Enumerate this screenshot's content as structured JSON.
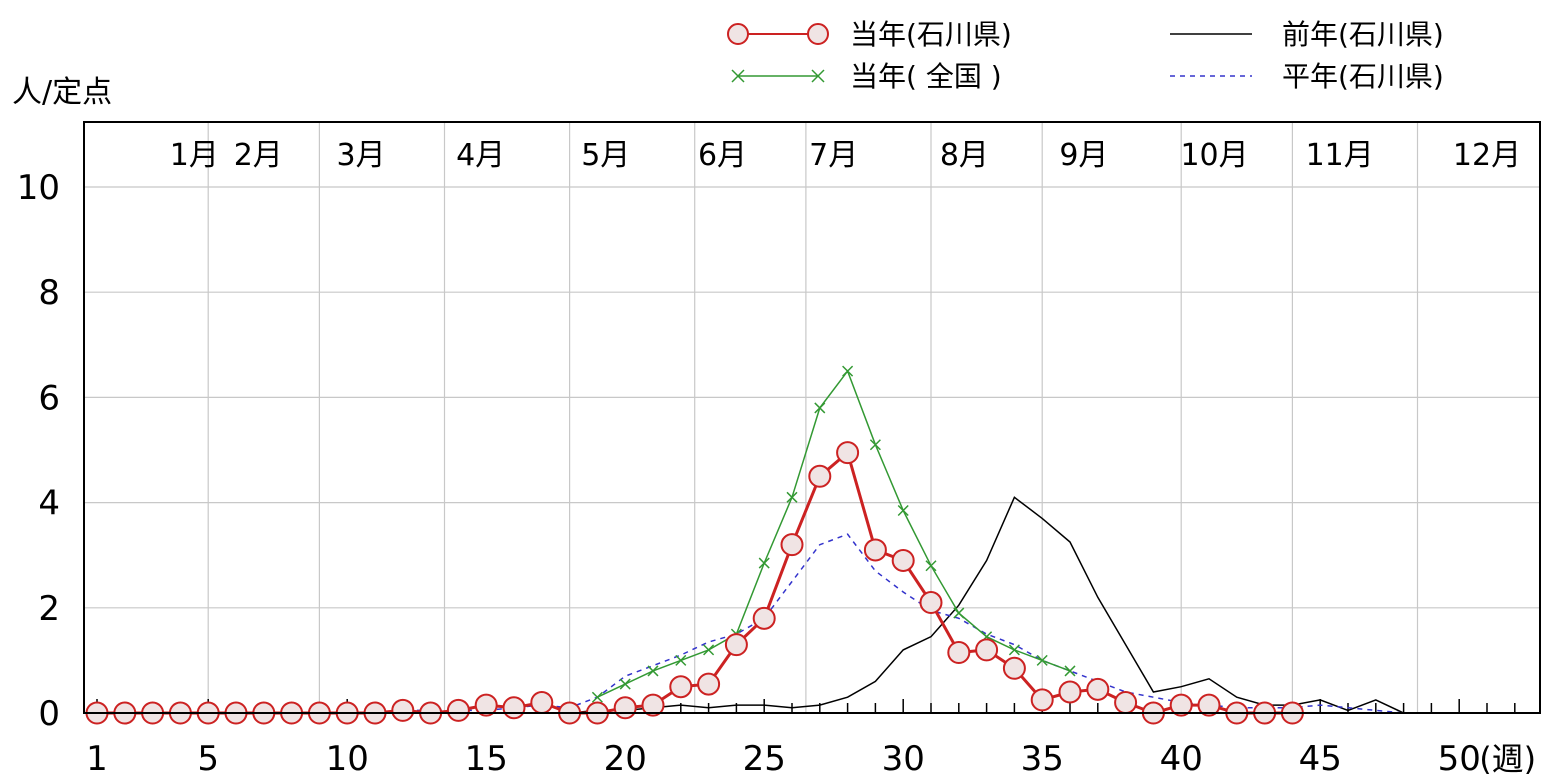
{
  "chart_data": {
    "type": "line",
    "ylabel": "人/定点",
    "xunit": "(週)",
    "ylim": [
      0,
      10
    ],
    "xlim": [
      1,
      52
    ],
    "yticks": [
      "0",
      "2",
      "4",
      "6",
      "8",
      "10"
    ],
    "xticks": [
      {
        "x": 1,
        "label": "1"
      },
      {
        "x": 5,
        "label": "5"
      },
      {
        "x": 10,
        "label": "10"
      },
      {
        "x": 15,
        "label": "15"
      },
      {
        "x": 20,
        "label": "20"
      },
      {
        "x": 25,
        "label": "25"
      },
      {
        "x": 30,
        "label": "30"
      },
      {
        "x": 35,
        "label": "35"
      },
      {
        "x": 40,
        "label": "40"
      },
      {
        "x": 45,
        "label": "45"
      },
      {
        "x": 50,
        "label": "50"
      }
    ],
    "months": [
      {
        "label": "1月",
        "x": 4.5
      },
      {
        "label": "2月",
        "x": 6.8
      },
      {
        "label": "3月",
        "x": 10.5
      },
      {
        "label": "4月",
        "x": 14.8
      },
      {
        "label": "5月",
        "x": 19.3
      },
      {
        "label": "6月",
        "x": 23.5
      },
      {
        "label": "7月",
        "x": 27.5
      },
      {
        "label": "8月",
        "x": 32.2
      },
      {
        "label": "9月",
        "x": 36.5
      },
      {
        "label": "10月",
        "x": 41.2
      },
      {
        "label": "11月",
        "x": 45.7
      },
      {
        "label": "12月",
        "x": 51
      }
    ],
    "month_boundaries": [
      5,
      9,
      13.5,
      18,
      22.5,
      26.5,
      31,
      35,
      40,
      44,
      48.5
    ],
    "legend": {
      "current_pref": "当年(石川県)",
      "current_national": "当年( 全国 )",
      "previous_pref": "前年(石川県)",
      "normal_pref": "平年(石川県)"
    },
    "series": [
      {
        "name": "当年(石川県)",
        "color": "#cc2222",
        "x": [
          1,
          2,
          3,
          4,
          5,
          6,
          7,
          8,
          9,
          10,
          11,
          12,
          13,
          14,
          15,
          16,
          17,
          18,
          19,
          20,
          21,
          22,
          23,
          24,
          25,
          26,
          27,
          28,
          29,
          30,
          31,
          32,
          33,
          34,
          35,
          36,
          37,
          38,
          39,
          40,
          41,
          42,
          43,
          44
        ],
        "values": [
          0,
          0,
          0,
          0,
          0,
          0,
          0,
          0,
          0,
          0,
          0,
          0.05,
          0,
          0.05,
          0.15,
          0.1,
          0.2,
          0,
          0,
          0.1,
          0.15,
          0.5,
          0.55,
          1.3,
          1.8,
          3.2,
          4.5,
          4.95,
          3.1,
          2.9,
          2.1,
          1.15,
          1.2,
          0.85,
          0.25,
          0.4,
          0.45,
          0.2,
          0,
          0.15,
          0.15,
          0,
          0,
          0
        ]
      },
      {
        "name": "当年( 全国 )",
        "color": "#339933",
        "x": [
          19,
          20,
          21,
          22,
          23,
          24,
          25,
          26,
          27,
          28,
          29,
          30,
          31,
          32,
          33,
          34,
          35,
          36
        ],
        "values": [
          0.3,
          0.55,
          0.8,
          1.0,
          1.2,
          1.5,
          2.85,
          4.1,
          5.8,
          6.5,
          5.1,
          3.85,
          2.8,
          1.9,
          1.45,
          1.2,
          1.0,
          0.8
        ]
      },
      {
        "name": "前年(石川県)",
        "color": "#000000",
        "x": [
          1,
          2,
          3,
          4,
          5,
          6,
          7,
          8,
          9,
          10,
          11,
          12,
          13,
          14,
          15,
          16,
          17,
          18,
          19,
          20,
          21,
          22,
          23,
          24,
          25,
          26,
          27,
          28,
          29,
          30,
          31,
          32,
          33,
          34,
          35,
          36,
          37,
          38,
          39,
          40,
          41,
          42,
          43,
          44,
          45,
          46,
          47,
          48,
          49,
          50,
          51,
          52
        ],
        "values": [
          0,
          0,
          0,
          0,
          0,
          0,
          0,
          0,
          0,
          0,
          0,
          0,
          0,
          0,
          0,
          0,
          0,
          0,
          0.05,
          0.05,
          0.1,
          0.15,
          0.1,
          0.15,
          0.15,
          0.1,
          0.15,
          0.3,
          0.6,
          1.2,
          1.45,
          2.05,
          2.9,
          4.1,
          3.7,
          3.25,
          2.2,
          1.3,
          0.4,
          0.5,
          0.65,
          0.3,
          0.15,
          0.15,
          0.25,
          0.05,
          0.25,
          0,
          0,
          0,
          0,
          0
        ]
      },
      {
        "name": "平年(石川県)",
        "color": "#3333cc",
        "x": [
          1,
          2,
          3,
          4,
          5,
          6,
          7,
          8,
          9,
          10,
          11,
          12,
          13,
          14,
          15,
          16,
          17,
          18,
          19,
          20,
          21,
          22,
          23,
          24,
          25,
          26,
          27,
          28,
          29,
          30,
          31,
          32,
          33,
          34,
          35,
          36,
          37,
          38,
          39,
          40,
          41,
          42,
          43,
          44,
          45,
          46,
          47,
          48,
          49,
          50,
          51,
          52
        ],
        "values": [
          0,
          0,
          0,
          0,
          0,
          0,
          0,
          0,
          0,
          0,
          0,
          0.05,
          0.05,
          0.05,
          0.05,
          0.1,
          0.15,
          0.1,
          0.3,
          0.7,
          0.9,
          1.1,
          1.35,
          1.5,
          1.8,
          2.5,
          3.2,
          3.4,
          2.7,
          2.3,
          1.95,
          1.8,
          1.5,
          1.3,
          1.0,
          0.8,
          0.6,
          0.4,
          0.3,
          0.2,
          0.15,
          0.1,
          0.1,
          0.1,
          0.15,
          0.1,
          0.05,
          0,
          0,
          0,
          0,
          0
        ]
      }
    ]
  }
}
